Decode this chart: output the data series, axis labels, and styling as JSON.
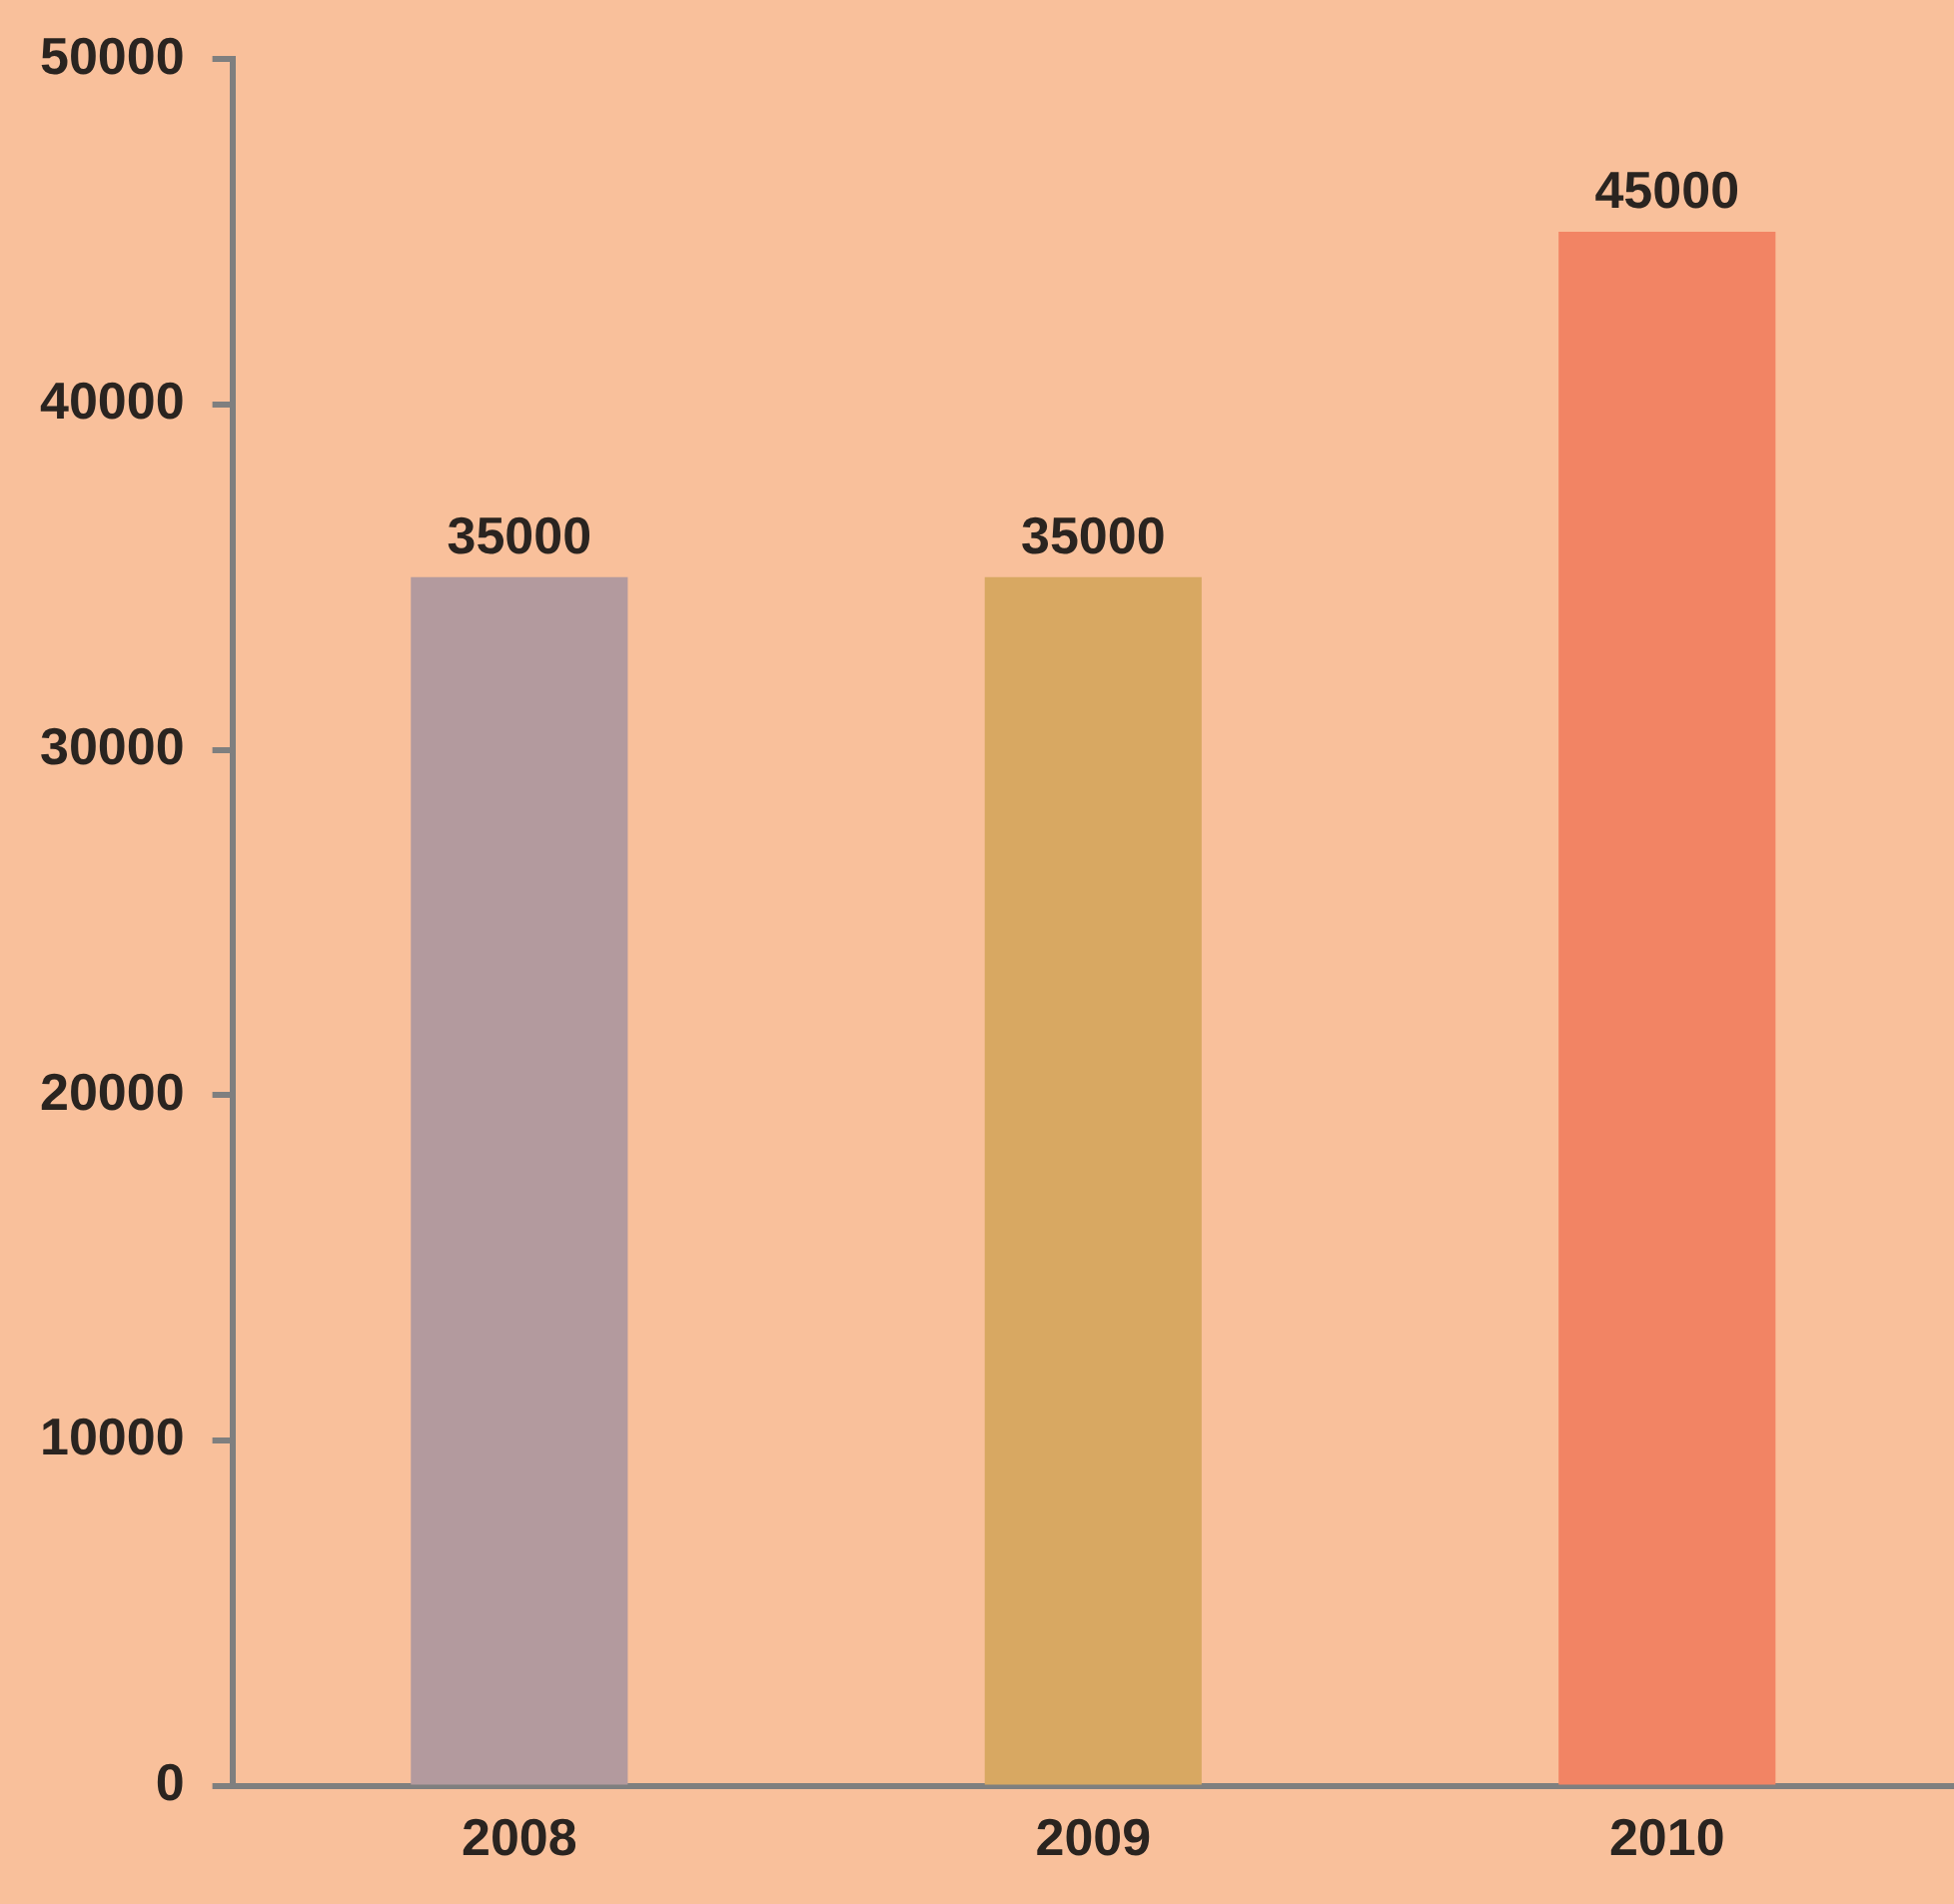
{
  "chart_data": {
    "type": "bar",
    "categories": [
      "2008",
      "2009",
      "2010"
    ],
    "values": [
      35000,
      35000,
      45000
    ],
    "colors": [
      "#b39a9e",
      "#d8a862",
      "#f28464"
    ],
    "ylim": [
      0,
      50000
    ],
    "yticks": [
      0,
      10000,
      20000,
      30000,
      40000,
      50000
    ],
    "grid": false,
    "legend": false,
    "data_labels": true
  }
}
